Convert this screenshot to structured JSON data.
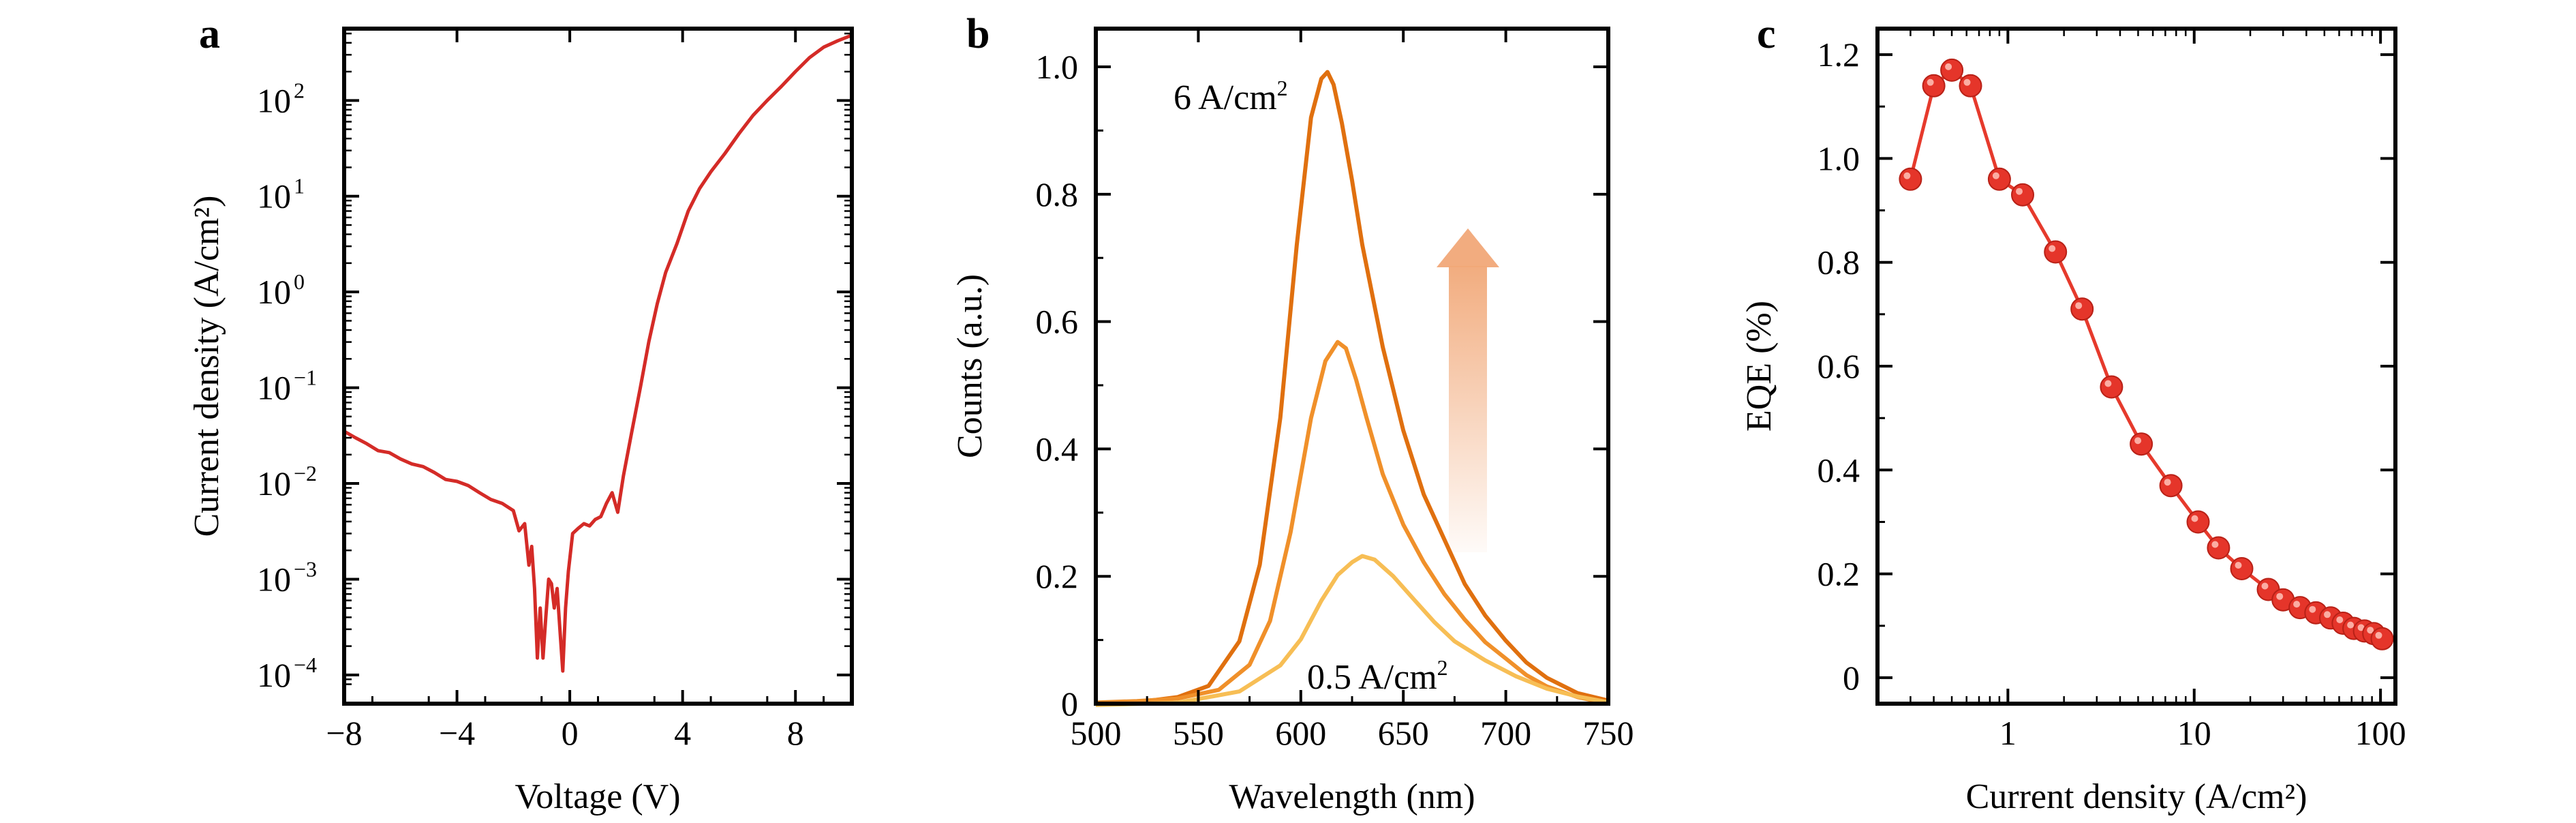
{
  "colors": {
    "a_line": "#D42B27",
    "b_high": "#E0700F",
    "b_mid": "#F0902A",
    "b_low": "#F7BE55",
    "b_label_high": "#9E2A1B",
    "b_label_low": "#F2A33A",
    "c_line": "#E63A2C",
    "c_marker": "#E5352A",
    "arrow": "#F1A878"
  },
  "chart_data": [
    {
      "panel": "a",
      "type": "line",
      "xlabel": "Voltage (V)",
      "ylabel": "Current density (A/cm²)",
      "xlim": [
        -8,
        10
      ],
      "ylim_log10": [
        -4.3,
        2.75
      ],
      "y_scale": "log",
      "xticks": [
        {
          "v": -8,
          "label": "−8"
        },
        {
          "v": -4,
          "label": "−4"
        },
        {
          "v": 0,
          "label": "0"
        },
        {
          "v": 4,
          "label": "4"
        },
        {
          "v": 8,
          "label": "8"
        }
      ],
      "yticks": [
        {
          "exp": -4,
          "base": "10",
          "sup": "−4"
        },
        {
          "exp": -3,
          "base": "10",
          "sup": "−3"
        },
        {
          "exp": -2,
          "base": "10",
          "sup": "−2"
        },
        {
          "exp": -1,
          "base": "10",
          "sup": "−1"
        },
        {
          "exp": 0,
          "base": "10",
          "sup": "0"
        },
        {
          "exp": 1,
          "base": "10",
          "sup": "1"
        },
        {
          "exp": 2,
          "base": "10",
          "sup": "2"
        }
      ],
      "series": [
        {
          "x": [
            -8,
            -7.6,
            -7.2,
            -6.8,
            -6.4,
            -6,
            -5.6,
            -5.2,
            -4.8,
            -4.4,
            -4,
            -3.6,
            -3.2,
            -2.8,
            -2.4,
            -2,
            -1.8,
            -1.6,
            -1.45,
            -1.35,
            -1.25,
            -1.15,
            -1.05,
            -0.95,
            -0.85,
            -0.75,
            -0.65,
            -0.55,
            -0.45,
            -0.35,
            -0.25,
            -0.15,
            -0.05,
            0.1,
            0.3,
            0.5,
            0.7,
            0.9,
            1.1,
            1.3,
            1.5,
            1.7,
            1.9,
            2.2,
            2.5,
            2.8,
            3.1,
            3.4,
            3.8,
            4.2,
            4.6,
            5.0,
            5.5,
            6.0,
            6.5,
            7.0,
            7.5,
            8.0,
            8.5,
            9.0,
            9.5,
            10.0
          ],
          "y": [
            0.035,
            0.03,
            0.026,
            0.022,
            0.021,
            0.018,
            0.016,
            0.015,
            0.013,
            0.011,
            0.0105,
            0.0095,
            0.008,
            0.0068,
            0.0062,
            0.0052,
            0.0032,
            0.0038,
            0.0014,
            0.0022,
            0.0008,
            0.00015,
            0.0005,
            0.00015,
            0.0004,
            0.001,
            0.0009,
            0.0005,
            0.0008,
            0.0003,
            0.00011,
            0.0005,
            0.0012,
            0.003,
            0.0034,
            0.0038,
            0.0036,
            0.0042,
            0.0045,
            0.0062,
            0.008,
            0.005,
            0.012,
            0.035,
            0.1,
            0.3,
            0.75,
            1.6,
            3.2,
            7,
            12,
            18,
            28,
            45,
            70,
            100,
            140,
            200,
            280,
            360,
            420,
            480
          ]
        }
      ]
    },
    {
      "panel": "b",
      "type": "line",
      "xlabel": "Wavelength (nm)",
      "ylabel": "Counts (a.u.)",
      "xlim": [
        500,
        750
      ],
      "ylim": [
        0,
        1.06
      ],
      "xticks": [
        {
          "v": 500,
          "label": "500"
        },
        {
          "v": 550,
          "label": "550"
        },
        {
          "v": 600,
          "label": "600"
        },
        {
          "v": 650,
          "label": "650"
        },
        {
          "v": 700,
          "label": "700"
        },
        {
          "v": 750,
          "label": "750"
        }
      ],
      "yticks": [
        {
          "v": 0,
          "label": "0"
        },
        {
          "v": 0.2,
          "label": "0.2"
        },
        {
          "v": 0.4,
          "label": "0.4"
        },
        {
          "v": 0.6,
          "label": "0.6"
        },
        {
          "v": 0.8,
          "label": "0.8"
        },
        {
          "v": 1.0,
          "label": "1.0"
        }
      ],
      "annotations": {
        "high": {
          "text": "6 A/cm",
          "sup": "2"
        },
        "low": {
          "text": "0.5 A/cm",
          "sup": "2"
        }
      },
      "series": [
        {
          "x": [
            500,
            520,
            540,
            555,
            570,
            580,
            590,
            598,
            605,
            610,
            613,
            616,
            620,
            625,
            630,
            640,
            650,
            660,
            670,
            680,
            690,
            700,
            710,
            720,
            735,
            750
          ],
          "y": [
            0,
            0.003,
            0.012,
            0.03,
            0.1,
            0.22,
            0.45,
            0.72,
            0.92,
            0.98,
            0.99,
            0.97,
            0.91,
            0.82,
            0.72,
            0.56,
            0.43,
            0.33,
            0.26,
            0.19,
            0.14,
            0.1,
            0.065,
            0.04,
            0.015,
            0.003
          ]
        },
        {
          "x": [
            500,
            520,
            540,
            560,
            575,
            585,
            595,
            605,
            612,
            618,
            622,
            627,
            632,
            640,
            650,
            660,
            670,
            680,
            690,
            700,
            710,
            720,
            735,
            750
          ],
          "y": [
            0,
            0.002,
            0.006,
            0.02,
            0.06,
            0.13,
            0.27,
            0.45,
            0.54,
            0.57,
            0.56,
            0.51,
            0.45,
            0.36,
            0.28,
            0.22,
            0.17,
            0.13,
            0.095,
            0.07,
            0.045,
            0.028,
            0.012,
            0.002
          ]
        },
        {
          "x": [
            500,
            540,
            570,
            590,
            600,
            610,
            618,
            625,
            630,
            636,
            645,
            655,
            665,
            675,
            690,
            705,
            720,
            735,
            750
          ],
          "y": [
            0,
            0.003,
            0.02,
            0.06,
            0.1,
            0.16,
            0.2,
            0.22,
            0.23,
            0.225,
            0.2,
            0.165,
            0.13,
            0.1,
            0.07,
            0.045,
            0.025,
            0.012,
            0.002
          ]
        }
      ]
    },
    {
      "panel": "c",
      "type": "line",
      "xlabel": "Current density (A/cm²)",
      "ylabel": "EQE (%)",
      "x_scale": "log",
      "xlim_log10": [
        -0.7,
        2.08
      ],
      "ylim": [
        -0.05,
        1.25
      ],
      "xticks": [
        {
          "v": 1,
          "label": "1"
        },
        {
          "v": 10,
          "label": "10"
        },
        {
          "v": 100,
          "label": "100"
        }
      ],
      "yticks": [
        {
          "v": 0,
          "label": "0"
        },
        {
          "v": 0.2,
          "label": "0.2"
        },
        {
          "v": 0.4,
          "label": "0.4"
        },
        {
          "v": 0.6,
          "label": "0.6"
        },
        {
          "v": 0.8,
          "label": "0.8"
        },
        {
          "v": 1.0,
          "label": "1.0"
        },
        {
          "v": 1.2,
          "label": "1.2"
        }
      ],
      "series": [
        {
          "x": [
            0.3,
            0.4,
            0.5,
            0.63,
            0.9,
            1.2,
            1.8,
            2.5,
            3.6,
            5.2,
            7.5,
            10.5,
            13.5,
            18,
            25,
            30,
            37,
            45,
            54,
            63,
            72,
            82,
            92,
            102
          ],
          "y": [
            0.96,
            1.14,
            1.17,
            1.14,
            0.96,
            0.93,
            0.82,
            0.71,
            0.56,
            0.45,
            0.37,
            0.3,
            0.25,
            0.21,
            0.17,
            0.15,
            0.135,
            0.125,
            0.115,
            0.105,
            0.095,
            0.09,
            0.085,
            0.075
          ]
        }
      ]
    }
  ],
  "panel_labels": {
    "a": "a",
    "b": "b",
    "c": "c"
  }
}
